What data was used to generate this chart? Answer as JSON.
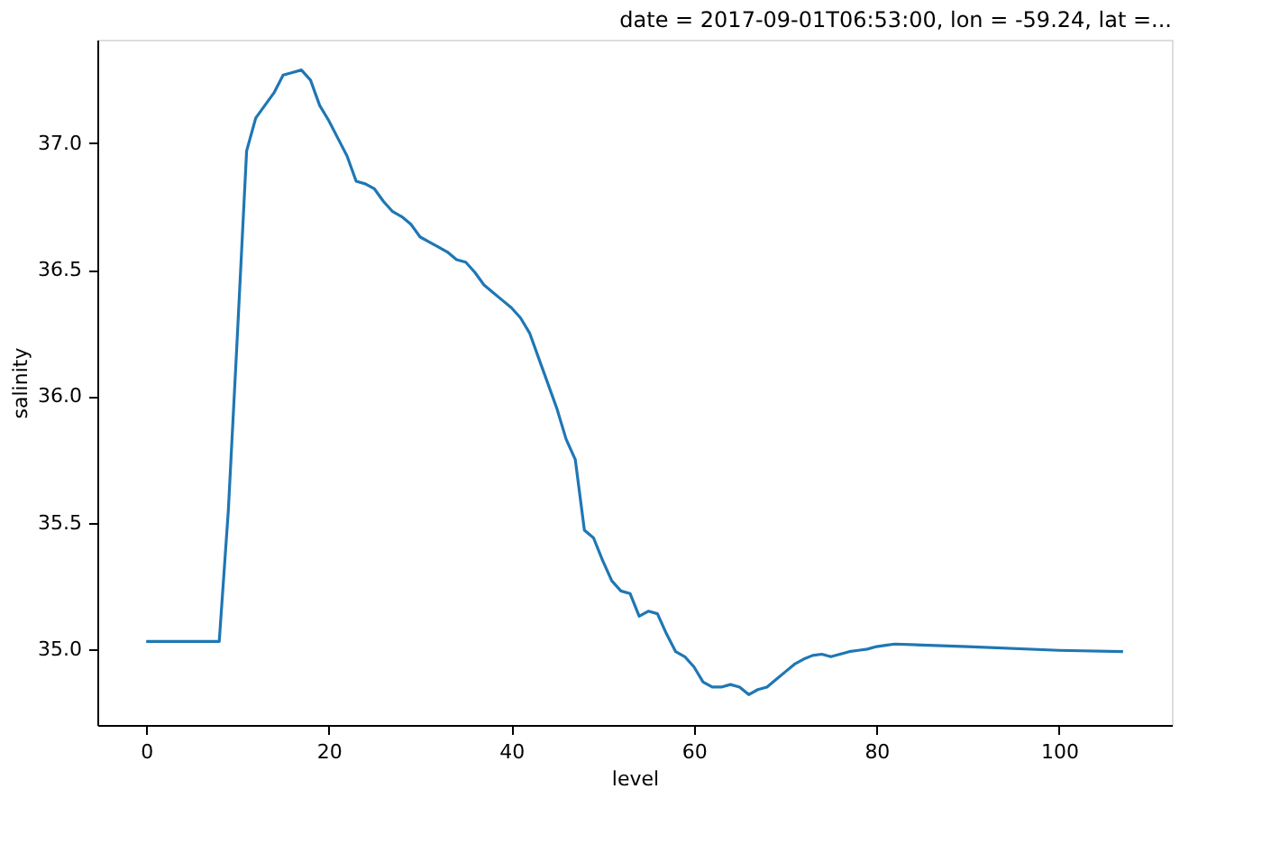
{
  "chart_data": {
    "type": "line",
    "title": "date = 2017-09-01T06:53:00, lon = -59.24, lat =...",
    "xlabel": "level",
    "ylabel": "salinity",
    "x": [
      0,
      1,
      2,
      3,
      4,
      5,
      6,
      7,
      8,
      9,
      10,
      11,
      12,
      13,
      14,
      15,
      16,
      17,
      18,
      19,
      20,
      21,
      22,
      23,
      24,
      25,
      26,
      27,
      28,
      29,
      30,
      31,
      32,
      33,
      34,
      35,
      36,
      37,
      38,
      39,
      40,
      41,
      42,
      43,
      44,
      45,
      46,
      47,
      48,
      49,
      50,
      51,
      52,
      53,
      54,
      55,
      56,
      57,
      58,
      59,
      60,
      61,
      62,
      63,
      64,
      65,
      66,
      67,
      68,
      69,
      70,
      71,
      72,
      73,
      74,
      75,
      76,
      77,
      78,
      79,
      80,
      81,
      82,
      90,
      100,
      107
    ],
    "series": [
      {
        "color": "#1f77b4",
        "values": [
          35.03,
          35.03,
          35.03,
          35.03,
          35.03,
          35.03,
          35.03,
          35.03,
          35.03,
          35.55,
          36.25,
          36.97,
          37.1,
          37.15,
          37.2,
          37.27,
          37.28,
          37.29,
          37.25,
          37.15,
          37.09,
          37.02,
          36.95,
          36.85,
          36.84,
          36.82,
          36.77,
          36.73,
          36.71,
          36.68,
          36.63,
          36.61,
          36.59,
          36.57,
          36.54,
          36.53,
          36.49,
          36.44,
          36.41,
          36.38,
          36.35,
          36.31,
          36.25,
          36.15,
          36.05,
          35.95,
          35.83,
          35.75,
          35.47,
          35.44,
          35.35,
          35.27,
          35.23,
          35.22,
          35.13,
          35.15,
          35.14,
          35.06,
          34.99,
          34.97,
          34.93,
          34.87,
          34.85,
          34.85,
          34.86,
          34.85,
          34.82,
          34.84,
          34.85,
          34.88,
          34.91,
          34.94,
          34.96,
          34.975,
          34.98,
          34.97,
          34.98,
          34.99,
          34.995,
          35.0,
          35.01,
          35.015,
          35.02,
          35.01,
          34.995,
          34.99
        ]
      }
    ],
    "xlim": [
      -5.35,
      112.35
    ],
    "ylim": [
      34.7,
      37.41
    ],
    "xticks": [
      0,
      20,
      40,
      60,
      80,
      100
    ],
    "yticks": [
      {
        "value": 35,
        "label": "35.0"
      },
      {
        "value": 35.5,
        "label": "35.5"
      },
      {
        "value": 36,
        "label": "36.0"
      },
      {
        "value": 36.5,
        "label": "36.5"
      },
      {
        "value": 37,
        "label": "37.0"
      }
    ],
    "grid": false,
    "legend": false,
    "marker": "none",
    "line_style": "solid"
  }
}
